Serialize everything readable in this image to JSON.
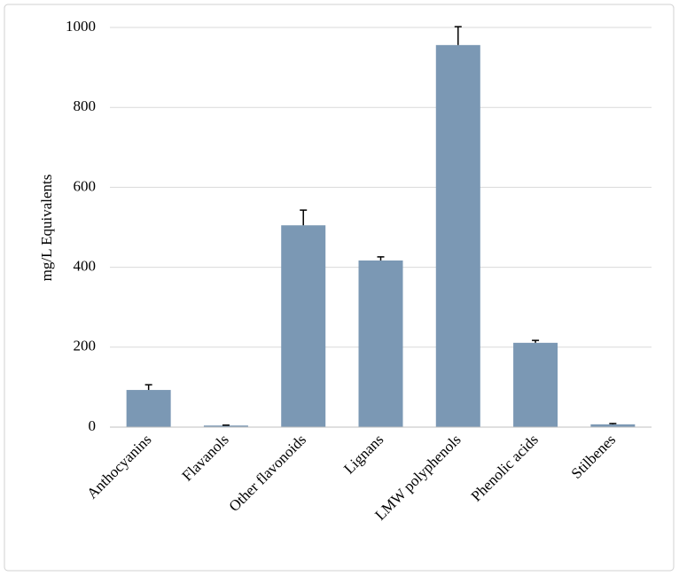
{
  "chart_data": {
    "type": "bar",
    "y_label": "mg/L Equivalents",
    "categories": [
      "Anthocyanins",
      "Flavanols",
      "Other flavonoids",
      "Lignans",
      "LMW polyphenols",
      "Phenolic acids",
      "Stilbenes"
    ],
    "values": [
      93,
      4,
      505,
      417,
      956,
      211,
      7
    ],
    "errors": [
      13,
      1,
      38,
      9,
      46,
      6,
      2
    ],
    "color": "#7b98b4",
    "ylim": [
      0,
      1000
    ],
    "yticks": [
      0,
      200,
      400,
      600,
      800,
      1000
    ],
    "grid": true
  }
}
